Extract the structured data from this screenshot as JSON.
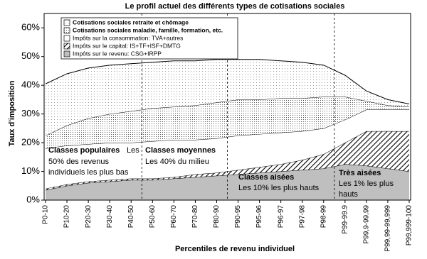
{
  "chart_data": {
    "type": "stacked-area",
    "title": "Le profil actuel des différents types de cotisations sociales",
    "xlabel": "Percentiles de revenu individuel",
    "ylabel": "Taux d'imposition",
    "categories": [
      "P0-10",
      "P10-20",
      "P20-30",
      "P30-40",
      "P40-50",
      "P50-60",
      "P60-70",
      "P70-80",
      "P80-90",
      "P90-95",
      "P95-96",
      "P96-97",
      "P97-98",
      "P98-99",
      "P99-99.9",
      "P99,9-99,99",
      "P99,99-99,999",
      "P99,999-100"
    ],
    "ylim": [
      0,
      65
    ],
    "yticks": [
      {
        "value": 0,
        "label": "0%"
      },
      {
        "value": 10,
        "label": "10%"
      },
      {
        "value": 20,
        "label": "20%"
      },
      {
        "value": 30,
        "label": "30%"
      },
      {
        "value": 40,
        "label": "40%"
      },
      {
        "value": 50,
        "label": "50%"
      },
      {
        "value": 60,
        "label": "60%"
      }
    ],
    "series": [
      {
        "name": "Impôts sur le revenu: CSG+IRPP",
        "color": "#bfbfbf",
        "pattern": "solid",
        "values": [
          3.5,
          5,
          6,
          6.5,
          7,
          7,
          7.5,
          8,
          8.5,
          9,
          9.5,
          10,
          10.5,
          11,
          12.5,
          12,
          11,
          10
        ]
      },
      {
        "name": "Impôts sur le capital: IS+TF+ISF+DMTG",
        "color": "#000000",
        "pattern": "hatch",
        "values": [
          0.5,
          0.5,
          0.5,
          0.5,
          0.5,
          0.5,
          0.5,
          1,
          1,
          1.5,
          2,
          2.5,
          3.5,
          5,
          7.5,
          12,
          13,
          14
        ]
      },
      {
        "name": "Impôts sur la consommation: TVA+autres",
        "color": "#ffffff",
        "pattern": "solid",
        "values": [
          14,
          13.5,
          13,
          13,
          12.5,
          13,
          13,
          12,
          12,
          12,
          11.5,
          11,
          10,
          9,
          8,
          7.5,
          7.5,
          7.5
        ]
      },
      {
        "name": "Cotisations sociales maladie, famille, formation, etc.",
        "color": "#555555",
        "pattern": "dots",
        "values": [
          4.5,
          7,
          9,
          10,
          11,
          11.5,
          11.5,
          12,
          12.5,
          12.5,
          12,
          12,
          11.5,
          11,
          8,
          3,
          1.5,
          1
        ]
      },
      {
        "name": "Cotisations sociales retraite et chômage",
        "color": "#999999",
        "pattern": "dots",
        "values": [
          18,
          18,
          17.5,
          17,
          16.5,
          16,
          16,
          15.5,
          15,
          14,
          14,
          13,
          12.5,
          11,
          7.5,
          3.5,
          2,
          1
        ]
      }
    ],
    "legend": "upper left",
    "annotations": [
      {
        "title": "Classes populaires",
        "lines": [
          "Les",
          "50% des revenus",
          "individuels les plus bas"
        ]
      },
      {
        "title": "Classes moyennes",
        "lines": [
          "Les 40% du milieu"
        ]
      },
      {
        "title": "Classes aisées",
        "lines": [
          "Les 10% les plus hauts"
        ]
      },
      {
        "title": "Très aisées",
        "lines": [
          "Les 1% les plus",
          "hauts"
        ]
      }
    ]
  }
}
